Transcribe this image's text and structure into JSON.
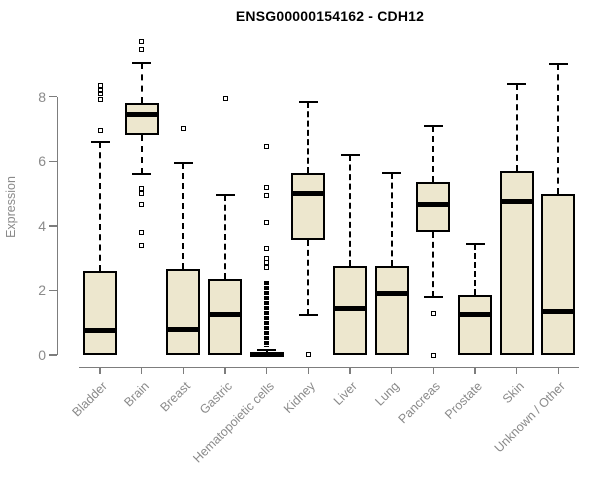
{
  "chart_data": {
    "type": "box",
    "title": "ENSG00000154162 - CDH12",
    "ylabel": "Expression",
    "xlabel": "",
    "yticks": [
      0,
      2,
      4,
      6,
      8
    ],
    "ylim": [
      -0.4,
      9.8
    ],
    "grid": false,
    "legend": "none",
    "box_fill_color": "#EDE7CE",
    "box_border_color": "#000000",
    "axis_line_color": "#7d7d7d",
    "axis_text_color": "#8a8a8a",
    "categories": [
      "Bladder",
      "Brain",
      "Breast",
      "Gastric",
      "Hematopoietic cells",
      "Kidney",
      "Liver",
      "Lung",
      "Pancreas",
      "Prostate",
      "Skin",
      "Unknown / Other"
    ],
    "boxes": [
      {
        "category": "Bladder",
        "q1": 0,
        "median": 0.75,
        "q3": 2.6,
        "whisker_low": 0,
        "whisker_high": 6.6,
        "outliers": [
          6.95,
          7.9,
          8.1,
          8.2,
          8.35
        ]
      },
      {
        "category": "Brain",
        "q1": 6.8,
        "median": 7.45,
        "q3": 7.8,
        "whisker_low": 5.6,
        "whisker_high": 9.05,
        "outliers": [
          3.4,
          3.8,
          4.65,
          5.0,
          5.15,
          9.45,
          9.7
        ]
      },
      {
        "category": "Breast",
        "q1": 0,
        "median": 0.8,
        "q3": 2.65,
        "whisker_low": 0,
        "whisker_high": 5.95,
        "outliers": [
          7.0
        ]
      },
      {
        "category": "Gastric",
        "q1": 0,
        "median": 1.25,
        "q3": 2.35,
        "whisker_low": 0,
        "whisker_high": 4.95,
        "outliers": [
          7.95
        ]
      },
      {
        "category": "Hematopoietic cells",
        "q1": 0,
        "median": 0.02,
        "q3": 0.1,
        "whisker_low": 0,
        "whisker_high": 0.15,
        "outliers": [
          2.7,
          2.85,
          3.0,
          3.3,
          4.1,
          4.95,
          5.2,
          6.45
        ],
        "outlier_band": [
          0.25,
          2.3
        ]
      },
      {
        "category": "Kidney",
        "q1": 3.55,
        "median": 5.0,
        "q3": 5.65,
        "whisker_low": 1.25,
        "whisker_high": 7.85,
        "outliers": [
          0.02
        ]
      },
      {
        "category": "Liver",
        "q1": 0,
        "median": 1.45,
        "q3": 2.75,
        "whisker_low": 0,
        "whisker_high": 6.2,
        "outliers": []
      },
      {
        "category": "Lung",
        "q1": 0,
        "median": 1.9,
        "q3": 2.75,
        "whisker_low": 0,
        "whisker_high": 5.65,
        "outliers": []
      },
      {
        "category": "Pancreas",
        "q1": 3.8,
        "median": 4.65,
        "q3": 5.35,
        "whisker_low": 1.8,
        "whisker_high": 7.1,
        "outliers": [
          0.0,
          1.3
        ]
      },
      {
        "category": "Prostate",
        "q1": 0,
        "median": 1.25,
        "q3": 1.85,
        "whisker_low": 0,
        "whisker_high": 3.45,
        "outliers": []
      },
      {
        "category": "Skin",
        "q1": 0,
        "median": 4.75,
        "q3": 5.7,
        "whisker_low": 0,
        "whisker_high": 8.4,
        "outliers": []
      },
      {
        "category": "Unknown / Other",
        "q1": 0,
        "median": 1.35,
        "q3": 5.0,
        "whisker_low": 0,
        "whisker_high": 9.0,
        "outliers": []
      }
    ]
  }
}
